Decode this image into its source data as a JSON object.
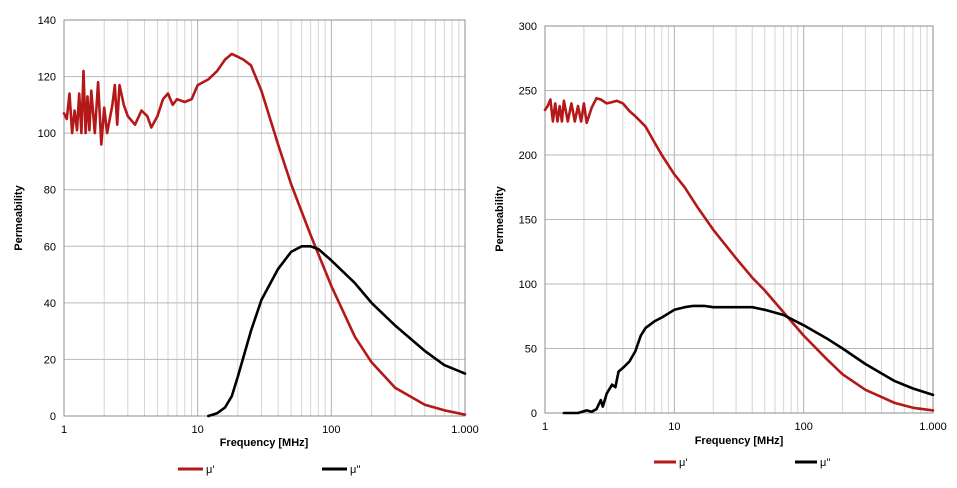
{
  "chart_data": [
    {
      "type": "line",
      "xscale": "log",
      "xlabel": "Frequency [MHz]",
      "ylabel": "Permeability",
      "xlim": [
        1,
        1000
      ],
      "ylim": [
        0,
        140
      ],
      "x_ticks": [
        "1",
        "10",
        "100",
        "1.000"
      ],
      "y_ticks": [
        "0",
        "20",
        "40",
        "60",
        "80",
        "100",
        "120",
        "140"
      ],
      "grid": true,
      "legend": "bottom",
      "series": [
        {
          "name": "μ'",
          "color": "#b41818",
          "points": [
            [
              1,
              107
            ],
            [
              1.05,
              105
            ],
            [
              1.1,
              114
            ],
            [
              1.15,
              100
            ],
            [
              1.2,
              108
            ],
            [
              1.25,
              101
            ],
            [
              1.3,
              114
            ],
            [
              1.35,
              100
            ],
            [
              1.4,
              122
            ],
            [
              1.45,
              100
            ],
            [
              1.5,
              113
            ],
            [
              1.55,
              101
            ],
            [
              1.6,
              115
            ],
            [
              1.7,
              100
            ],
            [
              1.8,
              118
            ],
            [
              1.9,
              96
            ],
            [
              2,
              109
            ],
            [
              2.1,
              100
            ],
            [
              2.3,
              110
            ],
            [
              2.4,
              117
            ],
            [
              2.5,
              103
            ],
            [
              2.6,
              117
            ],
            [
              2.8,
              110
            ],
            [
              3,
              106
            ],
            [
              3.4,
              103
            ],
            [
              3.8,
              108
            ],
            [
              4.2,
              106
            ],
            [
              4.5,
              102
            ],
            [
              5,
              106
            ],
            [
              5.5,
              112
            ],
            [
              6,
              114
            ],
            [
              6.5,
              110
            ],
            [
              7,
              112
            ],
            [
              8,
              111
            ],
            [
              9,
              112
            ],
            [
              10,
              117
            ],
            [
              12,
              119
            ],
            [
              14,
              122
            ],
            [
              16,
              126
            ],
            [
              18,
              128
            ],
            [
              20,
              127
            ],
            [
              22,
              126
            ],
            [
              25,
              124
            ],
            [
              30,
              115
            ],
            [
              40,
              96
            ],
            [
              50,
              82
            ],
            [
              70,
              64
            ],
            [
              100,
              46
            ],
            [
              150,
              28
            ],
            [
              200,
              19
            ],
            [
              300,
              10
            ],
            [
              500,
              4
            ],
            [
              700,
              2
            ],
            [
              1000,
              0.5
            ]
          ]
        },
        {
          "name": "μ''",
          "color": "#000000",
          "points": [
            [
              12,
              0
            ],
            [
              14,
              1
            ],
            [
              16,
              3
            ],
            [
              18,
              7
            ],
            [
              20,
              14
            ],
            [
              25,
              30
            ],
            [
              30,
              41
            ],
            [
              40,
              52
            ],
            [
              50,
              58
            ],
            [
              60,
              60
            ],
            [
              70,
              60
            ],
            [
              80,
              59
            ],
            [
              100,
              55
            ],
            [
              150,
              47
            ],
            [
              200,
              40
            ],
            [
              300,
              32
            ],
            [
              500,
              23
            ],
            [
              700,
              18
            ],
            [
              1000,
              15
            ]
          ]
        }
      ]
    },
    {
      "type": "line",
      "xscale": "log",
      "xlabel": "Frequency [MHz]",
      "ylabel": "Permeability",
      "xlim": [
        1,
        1000
      ],
      "ylim": [
        0,
        300
      ],
      "x_ticks": [
        "1",
        "10",
        "100",
        "1.000"
      ],
      "y_ticks": [
        "0",
        "50",
        "100",
        "150",
        "200",
        "250",
        "300"
      ],
      "grid": true,
      "legend": "bottom",
      "series": [
        {
          "name": "μ'",
          "color": "#b41818",
          "points": [
            [
              1,
              235
            ],
            [
              1.05,
              238
            ],
            [
              1.1,
              243
            ],
            [
              1.15,
              226
            ],
            [
              1.2,
              240
            ],
            [
              1.25,
              226
            ],
            [
              1.3,
              238
            ],
            [
              1.35,
              226
            ],
            [
              1.4,
              242
            ],
            [
              1.5,
              226
            ],
            [
              1.6,
              240
            ],
            [
              1.7,
              226
            ],
            [
              1.8,
              238
            ],
            [
              1.9,
              226
            ],
            [
              2,
              240
            ],
            [
              2.1,
              225
            ],
            [
              2.3,
              237
            ],
            [
              2.5,
              244
            ],
            [
              2.7,
              243
            ],
            [
              3,
              240
            ],
            [
              3.3,
              241
            ],
            [
              3.6,
              242
            ],
            [
              4,
              240
            ],
            [
              4.5,
              234
            ],
            [
              5,
              230
            ],
            [
              6,
              222
            ],
            [
              7,
              210
            ],
            [
              8,
              200
            ],
            [
              10,
              185
            ],
            [
              12,
              175
            ],
            [
              15,
              160
            ],
            [
              20,
              142
            ],
            [
              30,
              120
            ],
            [
              40,
              105
            ],
            [
              50,
              95
            ],
            [
              70,
              78
            ],
            [
              100,
              60
            ],
            [
              150,
              42
            ],
            [
              200,
              30
            ],
            [
              300,
              18
            ],
            [
              500,
              8
            ],
            [
              700,
              4
            ],
            [
              1000,
              2
            ]
          ]
        },
        {
          "name": "μ''",
          "color": "#000000",
          "points": [
            [
              1.4,
              0
            ],
            [
              1.8,
              0
            ],
            [
              2.1,
              2
            ],
            [
              2.3,
              1
            ],
            [
              2.5,
              3
            ],
            [
              2.7,
              10
            ],
            [
              2.8,
              5
            ],
            [
              3,
              15
            ],
            [
              3.3,
              22
            ],
            [
              3.5,
              20
            ],
            [
              3.7,
              32
            ],
            [
              4,
              35
            ],
            [
              4.5,
              40
            ],
            [
              5,
              48
            ],
            [
              5.5,
              60
            ],
            [
              6,
              66
            ],
            [
              7,
              71
            ],
            [
              8,
              74
            ],
            [
              10,
              80
            ],
            [
              12,
              82
            ],
            [
              14,
              83
            ],
            [
              17,
              83
            ],
            [
              20,
              82
            ],
            [
              30,
              82
            ],
            [
              40,
              82
            ],
            [
              50,
              80
            ],
            [
              70,
              76
            ],
            [
              100,
              68
            ],
            [
              150,
              58
            ],
            [
              200,
              50
            ],
            [
              300,
              38
            ],
            [
              500,
              25
            ],
            [
              700,
              19
            ],
            [
              1000,
              14
            ]
          ]
        }
      ]
    }
  ]
}
